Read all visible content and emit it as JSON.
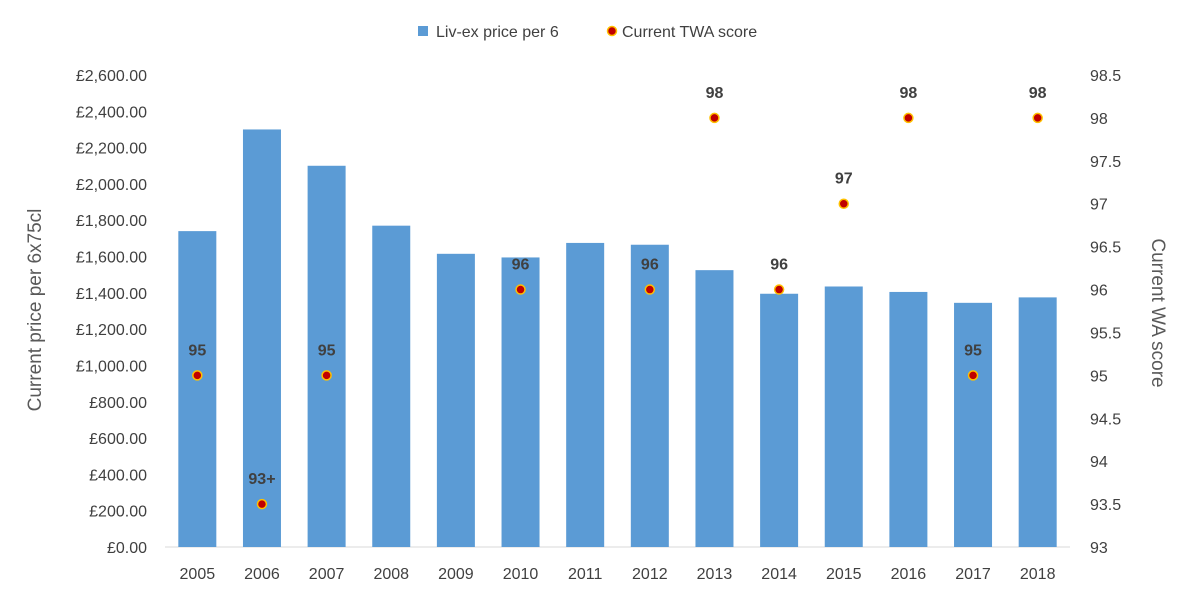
{
  "chart_data": {
    "type": "bar",
    "categories": [
      "2005",
      "2006",
      "2007",
      "2008",
      "2009",
      "2010",
      "2011",
      "2012",
      "2013",
      "2014",
      "2015",
      "2016",
      "2017",
      "2018"
    ],
    "series": [
      {
        "name": "Liv-ex price per 6",
        "type": "bar",
        "axis": "left",
        "color": "#5b9bd5",
        "values": [
          1740,
          2300,
          2100,
          1770,
          1615,
          1595,
          1675,
          1665,
          1525,
          1395,
          1435,
          1405,
          1345,
          1375
        ]
      },
      {
        "name": "Current TWA score",
        "type": "scatter",
        "axis": "right",
        "color": "#c00000",
        "marker_edge": "#ffc000",
        "values": [
          95,
          93.5,
          95,
          null,
          null,
          96,
          null,
          96,
          98,
          96,
          97,
          98,
          95,
          98
        ],
        "labels": [
          "95",
          "93+",
          "95",
          "",
          "",
          "96",
          "",
          "96",
          "98",
          "96",
          "97",
          "98",
          "95",
          "98"
        ]
      }
    ],
    "ylabel_left": "Current price per 6x75cl",
    "ylabel_right": "Current WA score",
    "ylim_left": [
      0,
      2600
    ],
    "ylim_right": [
      93,
      98.5
    ],
    "yticks_left": [
      "£0.00",
      "£200.00",
      "£400.00",
      "£600.00",
      "£800.00",
      "£1,000.00",
      "£1,200.00",
      "£1,400.00",
      "£1,600.00",
      "£1,800.00",
      "£2,000.00",
      "£2,200.00",
      "£2,400.00",
      "£2,600.00"
    ],
    "yticks_right": [
      "93",
      "93.5",
      "94",
      "94.5",
      "95",
      "95.5",
      "96",
      "96.5",
      "97",
      "97.5",
      "98",
      "98.5"
    ],
    "legend_position": "top-center",
    "grid": false
  }
}
